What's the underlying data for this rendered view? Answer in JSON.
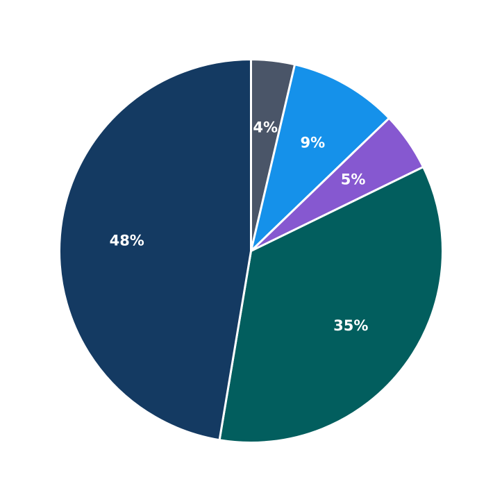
{
  "chart_data": {
    "type": "pie",
    "title": "",
    "start_angle": "top",
    "direction": "clockwise",
    "slices": [
      {
        "value": 3.7,
        "label": "4%",
        "color": "#4a5568"
      },
      {
        "value": 9.2,
        "label": "9%",
        "color": "#1591ea"
      },
      {
        "value": 5.0,
        "label": "5%",
        "color": "#8658d0"
      },
      {
        "value": 35.1,
        "label": "35%",
        "color": "#025e5e"
      },
      {
        "value": 47.7,
        "label": "48%",
        "color": "#143a62"
      }
    ]
  }
}
